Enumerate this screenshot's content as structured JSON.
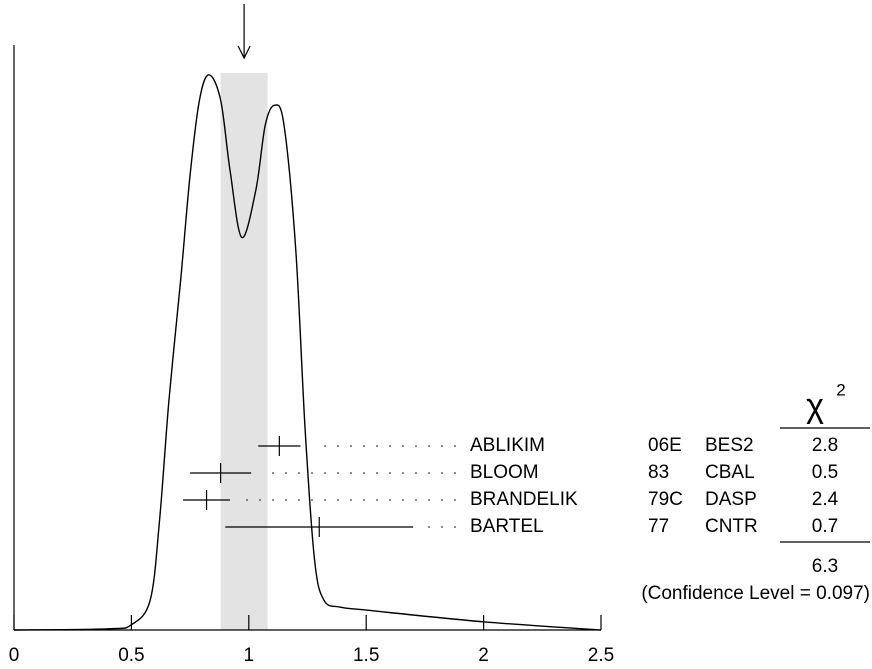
{
  "chart_data": {
    "type": "ideogram",
    "xlim": [
      0,
      2.5
    ],
    "xticks": [
      0,
      0.5,
      1,
      1.5,
      2,
      2.5
    ],
    "ylim": [
      0,
      1
    ],
    "average": 0.98,
    "average_error": 0.1,
    "curve": {
      "x": [
        0,
        0.4,
        0.5,
        0.58,
        0.62,
        0.66,
        0.71,
        0.75,
        0.79,
        0.83,
        0.88,
        0.92,
        0.97,
        1.03,
        1.07,
        1.11,
        1.15,
        1.2,
        1.24,
        1.28,
        1.32,
        1.39,
        1.5,
        2,
        2.5
      ],
      "y": [
        0,
        0.002,
        0.009,
        0.051,
        0.188,
        0.393,
        0.599,
        0.778,
        0.906,
        0.949,
        0.906,
        0.786,
        0.671,
        0.752,
        0.863,
        0.897,
        0.863,
        0.65,
        0.342,
        0.12,
        0.051,
        0.039,
        0.034,
        0.014,
        0
      ]
    },
    "chi2_symbol": "χ",
    "chi2_power": "2",
    "measurements": [
      {
        "name": "ABLIKIM",
        "code": "06E",
        "tech": "BES2",
        "value": 1.13,
        "error": 0.09,
        "chi2": 2.8
      },
      {
        "name": "BLOOM",
        "code": "83",
        "tech": "CBAL",
        "value": 0.88,
        "error": 0.13,
        "chi2": 0.5
      },
      {
        "name": "BRANDELIK",
        "code": "79C",
        "tech": "DASP",
        "value": 0.82,
        "error": 0.1,
        "chi2": 2.4
      },
      {
        "name": "BARTEL",
        "code": "77",
        "tech": "CNTR",
        "value": 1.3,
        "error": 0.4,
        "chi2": 0.7
      }
    ],
    "chi2_total": 6.3,
    "confidence_level": "(Confidence Level = 0.097)"
  }
}
